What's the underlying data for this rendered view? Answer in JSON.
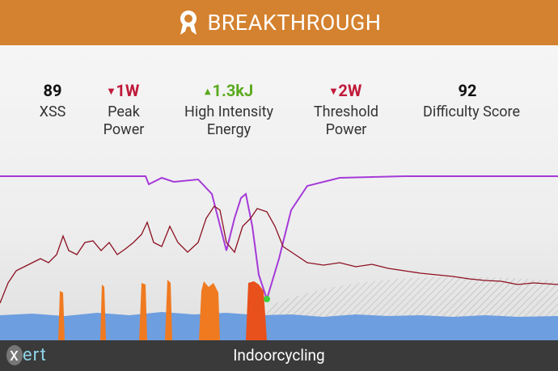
{
  "header": {
    "title": "BREAKTHROUGH"
  },
  "stats": [
    {
      "value": "89",
      "label": "XSS",
      "trend": "none"
    },
    {
      "value": "1W",
      "label": "Peak Power",
      "trend": "down"
    },
    {
      "value": "1.3kJ",
      "label": "High Intensity Energy",
      "trend": "up"
    },
    {
      "value": "2W",
      "label": "Threshold Power",
      "trend": "down"
    },
    {
      "value": "92",
      "label": "Difficulty Score",
      "trend": "none"
    }
  ],
  "footer": {
    "logo": "xert",
    "title": "Indoorcycling"
  }
}
